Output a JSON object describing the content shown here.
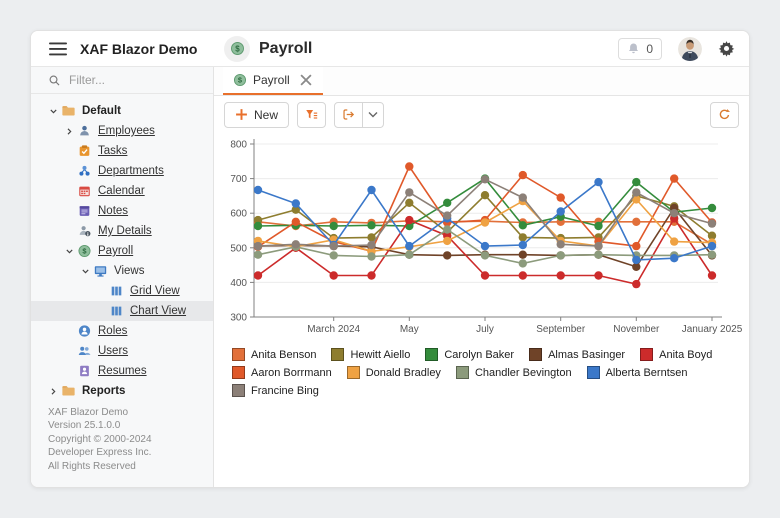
{
  "header": {
    "app_title": "XAF Blazor Demo",
    "page_title": "Payroll",
    "notifications_count": "0"
  },
  "sidebar": {
    "filter_placeholder": "Filter...",
    "items": [
      {
        "label": "Default",
        "icon": "folder-icon",
        "level": 0,
        "chevron": "down",
        "bold": true,
        "underline": false,
        "selected": false
      },
      {
        "label": "Employees",
        "icon": "employees-icon",
        "level": 1,
        "chevron": "right",
        "bold": false,
        "underline": true,
        "selected": false
      },
      {
        "label": "Tasks",
        "icon": "tasks-icon",
        "level": 1,
        "chevron": "none",
        "bold": false,
        "underline": true,
        "selected": false
      },
      {
        "label": "Departments",
        "icon": "departments-icon",
        "level": 1,
        "chevron": "none",
        "bold": false,
        "underline": true,
        "selected": false
      },
      {
        "label": "Calendar",
        "icon": "calendar-icon",
        "level": 1,
        "chevron": "none",
        "bold": false,
        "underline": true,
        "selected": false
      },
      {
        "label": "Notes",
        "icon": "notes-icon",
        "level": 1,
        "chevron": "none",
        "bold": false,
        "underline": true,
        "selected": false
      },
      {
        "label": "My Details",
        "icon": "my-details-icon",
        "level": 1,
        "chevron": "none",
        "bold": false,
        "underline": true,
        "selected": false
      },
      {
        "label": "Payroll",
        "icon": "payroll-icon",
        "level": 1,
        "chevron": "down",
        "bold": false,
        "underline": true,
        "selected": false
      },
      {
        "label": "Views",
        "icon": "views-icon",
        "level": 2,
        "chevron": "down",
        "bold": false,
        "underline": false,
        "selected": false
      },
      {
        "label": "Grid View",
        "icon": "columns-icon",
        "level": 3,
        "chevron": "none",
        "bold": false,
        "underline": true,
        "selected": false
      },
      {
        "label": "Chart View",
        "icon": "columns-icon",
        "level": 3,
        "chevron": "none",
        "bold": false,
        "underline": true,
        "selected": true
      },
      {
        "label": "Roles",
        "icon": "roles-icon",
        "level": 1,
        "chevron": "none",
        "bold": false,
        "underline": true,
        "selected": false
      },
      {
        "label": "Users",
        "icon": "users-icon",
        "level": 1,
        "chevron": "none",
        "bold": false,
        "underline": true,
        "selected": false
      },
      {
        "label": "Resumes",
        "icon": "resumes-icon",
        "level": 1,
        "chevron": "none",
        "bold": false,
        "underline": true,
        "selected": false
      },
      {
        "label": "Reports",
        "icon": "folder-icon",
        "level": 0,
        "chevron": "right",
        "bold": true,
        "underline": false,
        "selected": false
      }
    ],
    "footer_lines": [
      "XAF Blazor Demo",
      "Version 25.1.0.0",
      "Copyright © 2000-2024 Developer Express Inc.",
      "All Rights Reserved"
    ]
  },
  "tabs": [
    {
      "label": "Payroll",
      "icon": "payroll-icon",
      "active": true,
      "closable": true
    }
  ],
  "toolbar": {
    "new_label": "New"
  },
  "accent_color": "#E8702C",
  "chart_data": {
    "type": "line",
    "title": "",
    "xlabel": "",
    "ylabel": "",
    "ylim": [
      300,
      800
    ],
    "y_ticks": [
      300,
      400,
      500,
      600,
      700,
      800
    ],
    "grid": true,
    "legend_position": "bottom",
    "x_months": [
      "2024-01",
      "2024-02",
      "2024-03",
      "2024-04",
      "2024-05",
      "2024-06",
      "2024-07",
      "2024-08",
      "2024-09",
      "2024-10",
      "2024-11",
      "2024-12",
      "2025-01"
    ],
    "x_tick_labels": [
      "March 2024",
      "May",
      "July",
      "September",
      "November",
      "January 2025"
    ],
    "x_tick_month_index": [
      2,
      4,
      6,
      8,
      10,
      12
    ],
    "series": [
      {
        "name": "Anita Benson",
        "color": "#E2703A",
        "values": [
          575,
          563,
          575,
          572,
          578,
          575,
          577,
          573,
          575,
          575,
          575,
          575,
          510
        ]
      },
      {
        "name": "Hewitt Aiello",
        "color": "#8E7D2F",
        "values": [
          580,
          610,
          528,
          530,
          630,
          545,
          652,
          530,
          528,
          530,
          650,
          620,
          535
        ]
      },
      {
        "name": "Carolyn Baker",
        "color": "#348C3C",
        "values": [
          563,
          565,
          563,
          565,
          563,
          630,
          700,
          565,
          590,
          563,
          690,
          603,
          615
        ]
      },
      {
        "name": "Almas Basinger",
        "color": "#6F4328",
        "values": [
          505,
          507,
          505,
          503,
          480,
          478,
          480,
          480,
          478,
          480,
          445,
          615,
          478
        ]
      },
      {
        "name": "Anita Boyd",
        "color": "#CC2B2B",
        "values": [
          420,
          500,
          420,
          420,
          580,
          535,
          420,
          420,
          420,
          420,
          395,
          585,
          420
        ]
      },
      {
        "name": "Aaron Borrmann",
        "color": "#E0592A",
        "values": [
          503,
          575,
          518,
          490,
          735,
          573,
          580,
          710,
          645,
          518,
          505,
          700,
          573
        ]
      },
      {
        "name": "Donald Bradley",
        "color": "#EFA243",
        "values": [
          520,
          503,
          523,
          490,
          503,
          520,
          573,
          635,
          520,
          505,
          640,
          518,
          515
        ]
      },
      {
        "name": "Chandler Bevington",
        "color": "#8C9B7C",
        "values": [
          480,
          503,
          478,
          475,
          480,
          553,
          478,
          455,
          478,
          480,
          478,
          478,
          480
        ]
      },
      {
        "name": "Alberta Berntsen",
        "color": "#3B78C9",
        "values": [
          667,
          628,
          508,
          667,
          505,
          585,
          505,
          508,
          605,
          690,
          465,
          470,
          505
        ]
      },
      {
        "name": "Francine Bing",
        "color": "#8C8078",
        "values": [
          505,
          510,
          505,
          508,
          660,
          593,
          698,
          645,
          510,
          505,
          660,
          600,
          570
        ]
      }
    ]
  }
}
